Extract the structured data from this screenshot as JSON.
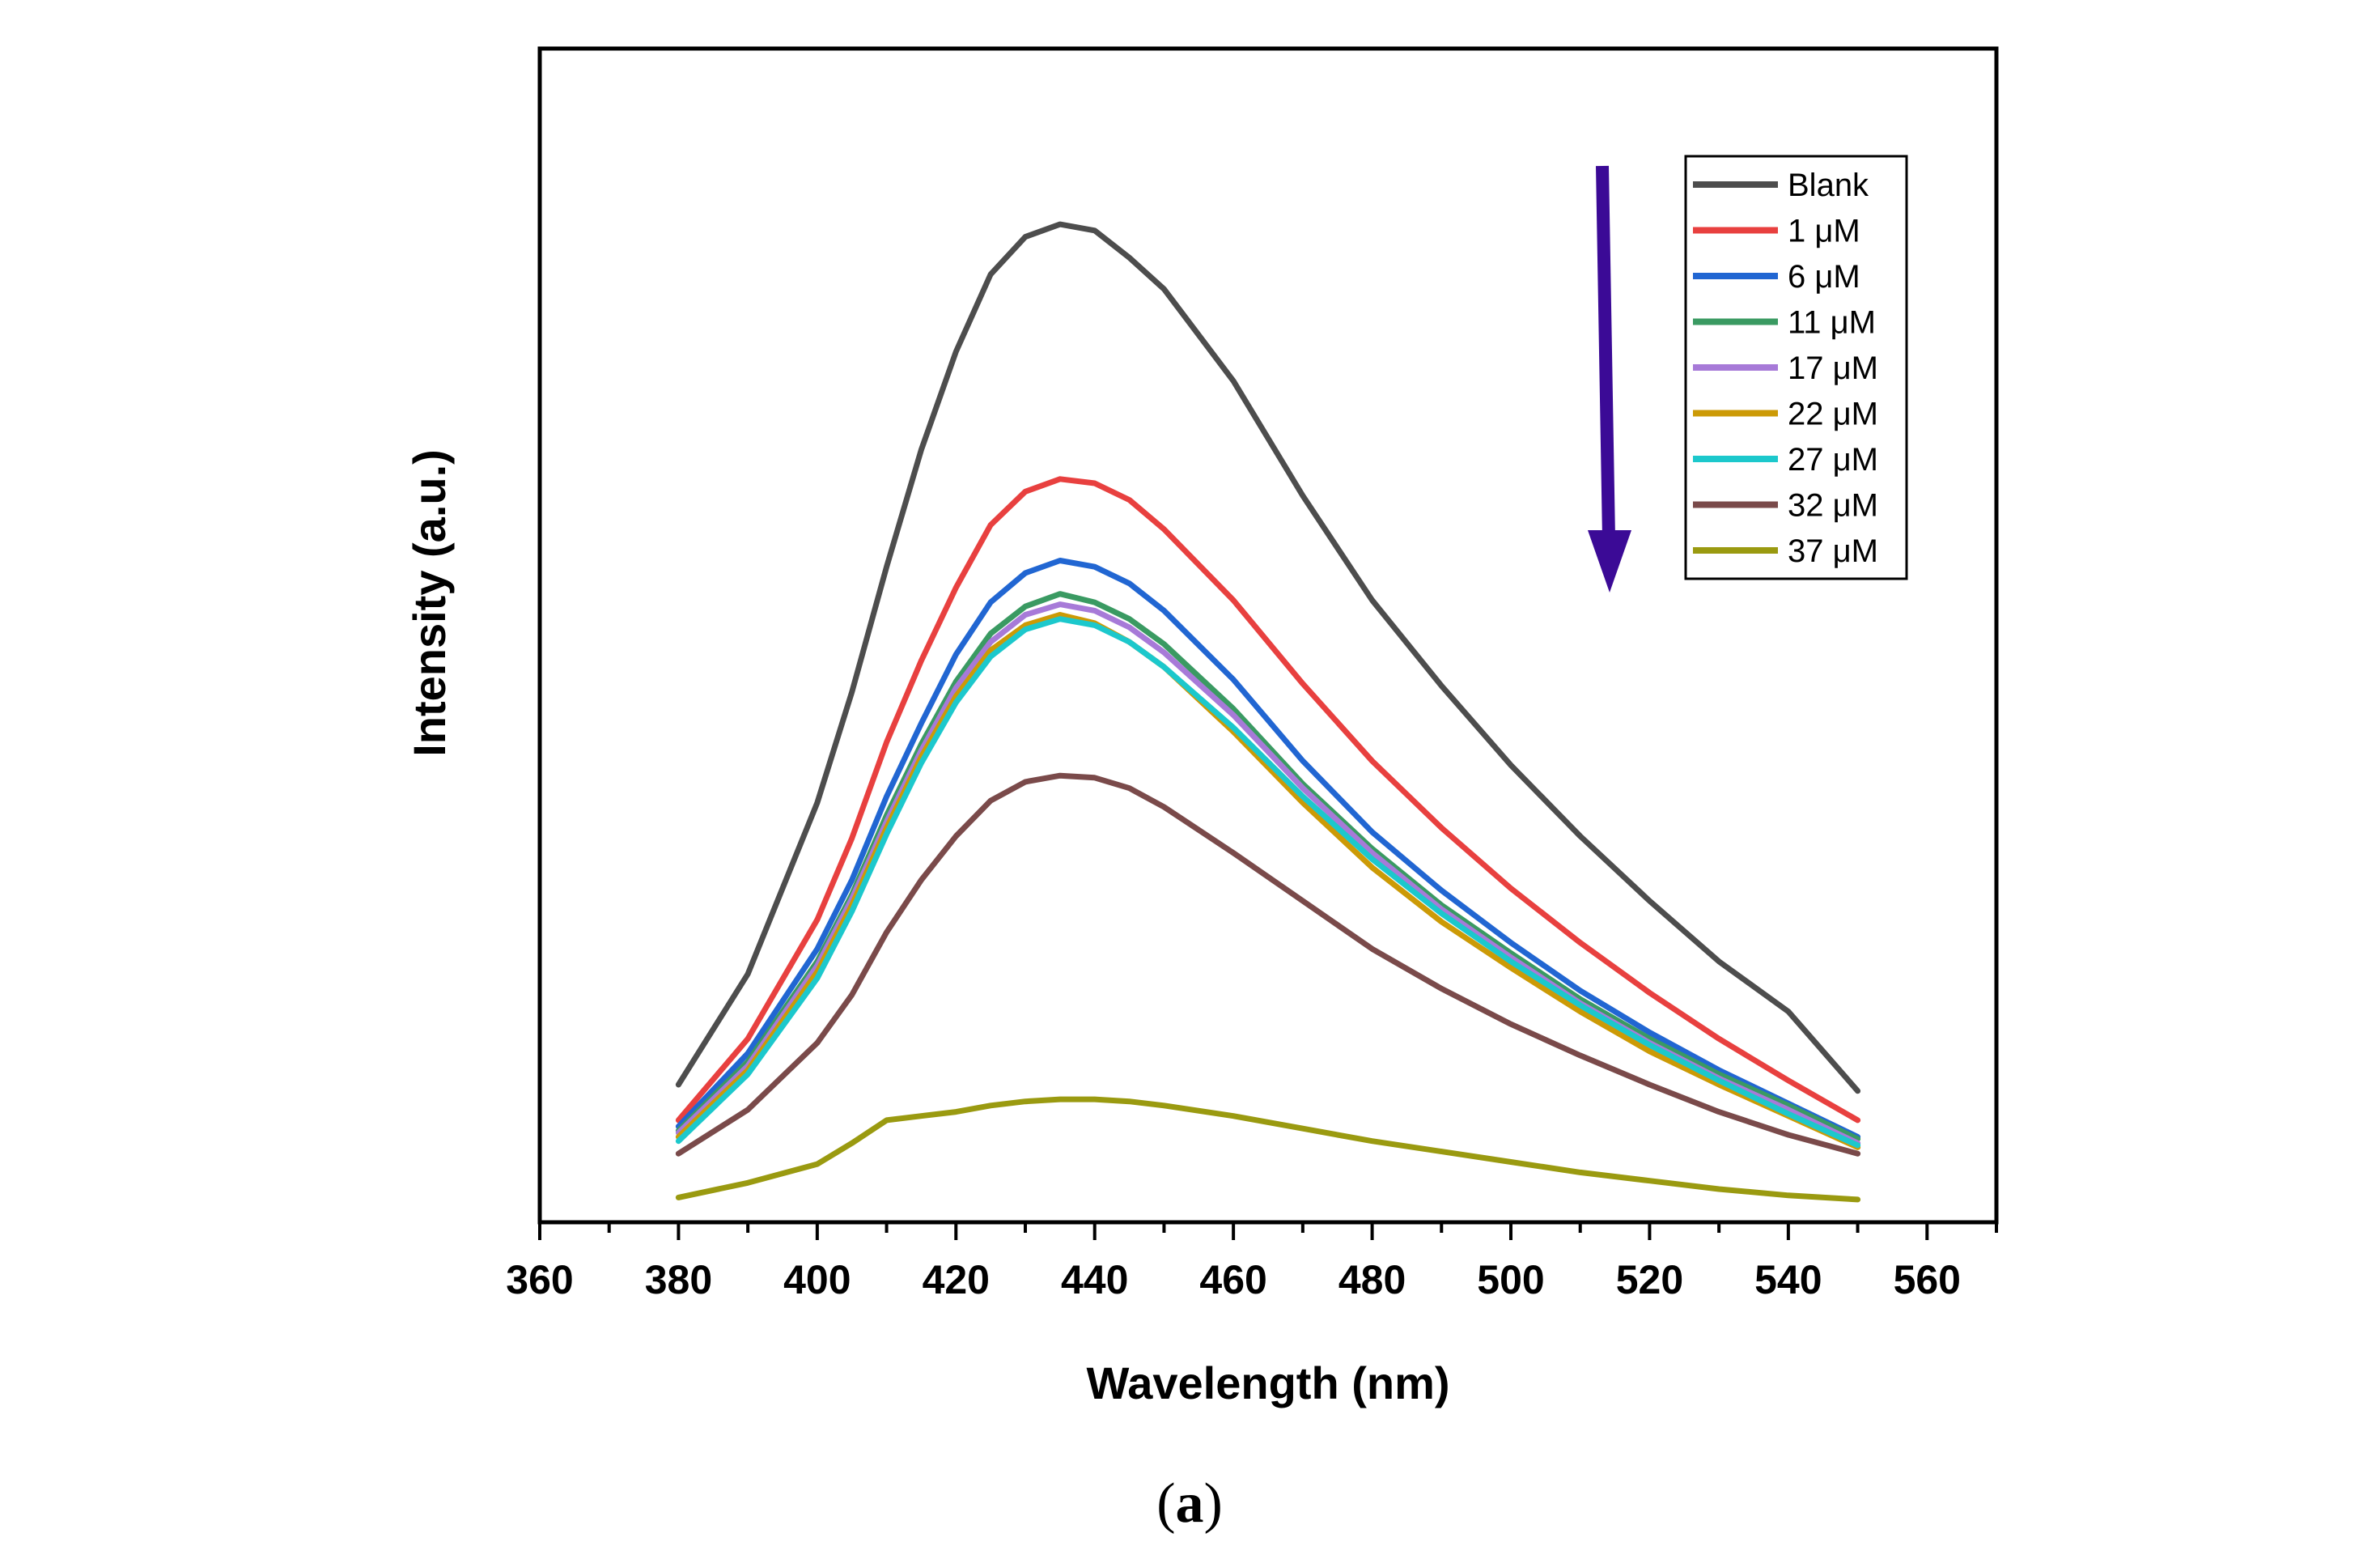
{
  "chart_data": {
    "type": "line",
    "xlabel": "Wavelength (nm)",
    "ylabel": "Intensity (a.u.)",
    "xlim": [
      360,
      570
    ],
    "ylim": [
      0,
      1.0
    ],
    "x_ticks": [
      360,
      380,
      400,
      420,
      440,
      460,
      480,
      500,
      520,
      540,
      560
    ],
    "grid": false,
    "legend_position": "top-right",
    "arrow_direction": "down",
    "arrow_color": "#3b0a96",
    "x": [
      380,
      390,
      400,
      405,
      410,
      415,
      420,
      425,
      430,
      435,
      440,
      445,
      450,
      460,
      470,
      480,
      490,
      500,
      510,
      520,
      530,
      540,
      550
    ],
    "series": [
      {
        "name": "Blank",
        "color": "#4d4d4d",
        "values": [
          0.124,
          0.23,
          0.394,
          0.5,
          0.62,
          0.732,
          0.826,
          0.9,
          0.936,
          0.948,
          0.942,
          0.916,
          0.886,
          0.798,
          0.688,
          0.588,
          0.506,
          0.43,
          0.362,
          0.3,
          0.242,
          0.194,
          0.118
        ]
      },
      {
        "name": "1 μM",
        "color": "#e8403f",
        "values": [
          0.09,
          0.168,
          0.282,
          0.36,
          0.452,
          0.53,
          0.6,
          0.66,
          0.692,
          0.704,
          0.7,
          0.684,
          0.656,
          0.588,
          0.508,
          0.434,
          0.37,
          0.312,
          0.26,
          0.212,
          0.168,
          0.128,
          0.09
        ]
      },
      {
        "name": "6 μM",
        "color": "#2166d2",
        "values": [
          0.084,
          0.154,
          0.254,
          0.32,
          0.4,
          0.47,
          0.536,
          0.586,
          0.614,
          0.626,
          0.62,
          0.604,
          0.578,
          0.512,
          0.434,
          0.366,
          0.31,
          0.26,
          0.214,
          0.174,
          0.138,
          0.106,
          0.074
        ]
      },
      {
        "name": "11 μM",
        "color": "#3a9a62",
        "values": [
          0.08,
          0.146,
          0.242,
          0.306,
          0.382,
          0.45,
          0.51,
          0.556,
          0.582,
          0.594,
          0.586,
          0.57,
          0.546,
          0.484,
          0.412,
          0.35,
          0.296,
          0.25,
          0.206,
          0.168,
          0.134,
          0.104,
          0.072
        ]
      },
      {
        "name": "17 μM",
        "color": "#a77ad8",
        "values": [
          0.078,
          0.142,
          0.238,
          0.302,
          0.376,
          0.444,
          0.504,
          0.548,
          0.574,
          0.584,
          0.578,
          0.562,
          0.538,
          0.478,
          0.408,
          0.346,
          0.292,
          0.246,
          0.202,
          0.164,
          0.13,
          0.1,
          0.068
        ]
      },
      {
        "name": "22 μM",
        "color": "#cc9a06",
        "values": [
          0.074,
          0.138,
          0.232,
          0.296,
          0.37,
          0.438,
          0.496,
          0.54,
          0.564,
          0.574,
          0.566,
          0.548,
          0.524,
          0.462,
          0.394,
          0.332,
          0.28,
          0.236,
          0.194,
          0.156,
          0.124,
          0.094,
          0.064
        ]
      },
      {
        "name": "27 μM",
        "color": "#1cc8cc",
        "values": [
          0.07,
          0.134,
          0.226,
          0.29,
          0.364,
          0.432,
          0.49,
          0.534,
          0.56,
          0.57,
          0.564,
          0.548,
          0.524,
          0.466,
          0.4,
          0.34,
          0.288,
          0.242,
          0.2,
          0.162,
          0.128,
          0.096,
          0.066
        ]
      },
      {
        "name": "32 μM",
        "color": "#7a4a4a",
        "values": [
          0.058,
          0.1,
          0.164,
          0.21,
          0.27,
          0.32,
          0.362,
          0.396,
          0.414,
          0.42,
          0.418,
          0.408,
          0.39,
          0.346,
          0.3,
          0.254,
          0.216,
          0.182,
          0.152,
          0.124,
          0.098,
          0.076,
          0.058
        ]
      },
      {
        "name": "37 μM",
        "color": "#9a9a10",
        "values": [
          0.016,
          0.03,
          0.048,
          0.068,
          0.09,
          0.094,
          0.098,
          0.104,
          0.108,
          0.11,
          0.11,
          0.108,
          0.104,
          0.094,
          0.082,
          0.07,
          0.06,
          0.05,
          0.04,
          0.032,
          0.024,
          0.018,
          0.014
        ]
      }
    ]
  },
  "caption": {
    "open": "(",
    "letter": "a",
    "close": ")"
  }
}
